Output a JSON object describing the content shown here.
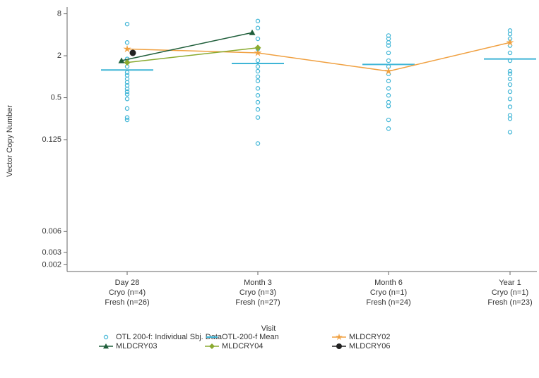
{
  "chart_data": {
    "type": "line",
    "x_label": "Visit",
    "y_label": "Vector Copy Number",
    "y_scale": "log",
    "ylim": [
      0.0016,
      10
    ],
    "yticks": [
      8,
      2,
      0.5,
      0.125,
      0.006,
      0.003,
      0.002
    ],
    "categories": [
      "Day 28",
      "Month 3",
      "Month 6",
      "Year 1"
    ],
    "category_notes": [
      [
        "Cryo (n=4)",
        "Fresh (n=26)"
      ],
      [
        "Cryo (n=3)",
        "Fresh (n=27)"
      ],
      [
        "Cryo (n=1)",
        "Fresh (n=24)"
      ],
      [
        "Cryo (n=1)",
        "Fresh (n=23)"
      ]
    ],
    "series": [
      {
        "name": "OTL 200-f: Individual Sbj. Data",
        "color": "#3fb5d6",
        "kind": "scatter",
        "marker": "circle-open",
        "values": [
          [
            5.7,
            3.1,
            1.8,
            1.6,
            1.4,
            1.15,
            1.05,
            0.93,
            0.83,
            0.75,
            0.67,
            0.61,
            0.56,
            0.48,
            0.35,
            0.26,
            0.24
          ],
          [
            6.3,
            5,
            3.5,
            2.5,
            1.7,
            1.4,
            1.2,
            1,
            0.87,
            0.68,
            0.54,
            0.43,
            0.34,
            0.26,
            0.11
          ],
          [
            3.9,
            3.5,
            3.1,
            2.8,
            2.2,
            1.7,
            1.4,
            1.1,
            0.87,
            0.68,
            0.54,
            0.43,
            0.38,
            0.24,
            0.18
          ],
          [
            4.6,
            4.1,
            3.5,
            2.8,
            2.2,
            1.7,
            1.2,
            1.1,
            0.93,
            0.77,
            0.61,
            0.48,
            0.37,
            0.28,
            0.25,
            0.16
          ]
        ]
      },
      {
        "name": "OTL-200-f Mean",
        "color": "#3fb5d6",
        "kind": "mean",
        "values": [
          1.25,
          1.55,
          1.5,
          1.8
        ]
      },
      {
        "name": "MLDCRY02",
        "color": "#f0a040",
        "kind": "line",
        "marker": "star",
        "values": [
          2.5,
          2.2,
          1.2,
          3.1
        ]
      },
      {
        "name": "MLDCRY03",
        "color": "#1f5e3a",
        "kind": "line",
        "marker": "triangle",
        "values": [
          1.7,
          4.3,
          null,
          null
        ]
      },
      {
        "name": "MLDCRY04",
        "color": "#8aaa30",
        "kind": "line",
        "marker": "diamond",
        "values": [
          1.6,
          2.6,
          null,
          null
        ]
      },
      {
        "name": "MLDCRY06",
        "color": "#222222",
        "kind": "line",
        "marker": "circle",
        "values": [
          2.2,
          null,
          null,
          null
        ]
      }
    ]
  }
}
